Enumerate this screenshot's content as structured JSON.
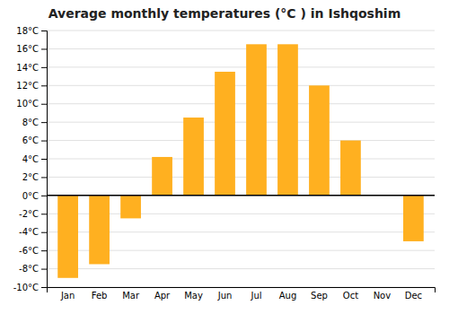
{
  "chart_data": {
    "type": "bar",
    "title": "Average monthly temperatures (°C ) in Ishqoshim",
    "categories": [
      "Jan",
      "Feb",
      "Mar",
      "Apr",
      "May",
      "Jun",
      "Jul",
      "Aug",
      "Sep",
      "Oct",
      "Nov",
      "Dec"
    ],
    "values": [
      -9,
      -7.5,
      -2.5,
      4.2,
      8.5,
      13.5,
      16.5,
      16.5,
      12,
      6,
      0,
      -5
    ],
    "color": "#FFB020",
    "ylim": [
      -10,
      18
    ],
    "yticks": [
      {
        "value": -10,
        "label": "-10°C"
      },
      {
        "value": -8,
        "label": "-8°C"
      },
      {
        "value": -6,
        "label": "-6°C"
      },
      {
        "value": -4,
        "label": "-4°C"
      },
      {
        "value": -2,
        "label": "-2°C"
      },
      {
        "value": 0,
        "label": "0°C"
      },
      {
        "value": 2,
        "label": "2°C"
      },
      {
        "value": 4,
        "label": "4°C"
      },
      {
        "value": 6,
        "label": "6°C"
      },
      {
        "value": 8,
        "label": "8°C"
      },
      {
        "value": 10,
        "label": "10°C"
      },
      {
        "value": 12,
        "label": "12°C"
      },
      {
        "value": 14,
        "label": "14°C"
      },
      {
        "value": 16,
        "label": "16°C"
      },
      {
        "value": 18,
        "label": "18°C"
      }
    ],
    "grid": true
  }
}
